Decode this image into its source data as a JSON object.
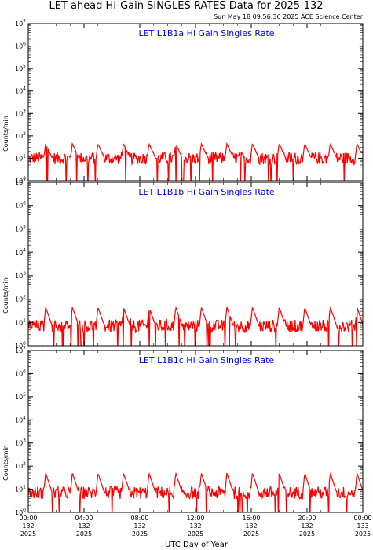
{
  "title": "LET ahead Hi-Gain SINGLES RATES Data for 2025-132",
  "timestamp": "Sun May 18 09:56:36 2025 ACE Science Center",
  "ylabel": "Counts/min",
  "xlabel": "UTC Day of Year",
  "colors": {
    "line": "#ff0000",
    "panel_title": "#0000ff",
    "axis": "#000000"
  },
  "chart_data": [
    {
      "type": "line",
      "title": "LET L1B1a Hi Gain Singles Rate",
      "y_scale": "log",
      "ylim": [
        1,
        10000000
      ],
      "y_ticks": [
        {
          "base": "10",
          "exp": "0"
        },
        {
          "base": "10",
          "exp": "1"
        },
        {
          "base": "10",
          "exp": "2"
        },
        {
          "base": "10",
          "exp": "3"
        },
        {
          "base": "10",
          "exp": "4"
        },
        {
          "base": "10",
          "exp": "5"
        },
        {
          "base": "10",
          "exp": "6"
        },
        {
          "base": "10",
          "exp": "7"
        }
      ],
      "baseline": 10,
      "peak": 45,
      "peak_times": [
        "01:10",
        "03:05",
        "04:55",
        "06:45",
        "08:35",
        "10:30",
        "12:20",
        "14:10",
        "16:00",
        "17:55",
        "19:45",
        "21:35",
        "23:30"
      ],
      "series": [
        {
          "values": []
        }
      ]
    },
    {
      "type": "line",
      "title": "LET L1B1b Hi Gain Singles Rate",
      "y_scale": "log",
      "ylim": [
        1,
        10000000
      ],
      "y_ticks": [
        {
          "base": "10",
          "exp": "0"
        },
        {
          "base": "10",
          "exp": "1"
        },
        {
          "base": "10",
          "exp": "2"
        },
        {
          "base": "10",
          "exp": "3"
        },
        {
          "base": "10",
          "exp": "4"
        },
        {
          "base": "10",
          "exp": "5"
        },
        {
          "base": "10",
          "exp": "6"
        },
        {
          "base": "10",
          "exp": "7"
        }
      ],
      "baseline": 7,
      "peak": 45,
      "peak_times": [
        "01:10",
        "03:05",
        "04:55",
        "06:45",
        "08:35",
        "10:30",
        "12:20",
        "14:10",
        "16:00",
        "17:55",
        "19:45",
        "21:35",
        "23:30"
      ],
      "series": [
        {
          "values": []
        }
      ]
    },
    {
      "type": "line",
      "title": "LET L1B1c Hi Gain Singles Rate",
      "y_scale": "log",
      "ylim": [
        1,
        10000000
      ],
      "y_ticks": [
        {
          "base": "10",
          "exp": "0"
        },
        {
          "base": "10",
          "exp": "1"
        },
        {
          "base": "10",
          "exp": "2"
        },
        {
          "base": "10",
          "exp": "3"
        },
        {
          "base": "10",
          "exp": "4"
        },
        {
          "base": "10",
          "exp": "5"
        },
        {
          "base": "10",
          "exp": "6"
        },
        {
          "base": "10",
          "exp": "7"
        }
      ],
      "baseline": 7,
      "peak": 50,
      "peak_times": [
        "01:10",
        "03:05",
        "04:55",
        "06:45",
        "08:35",
        "10:30",
        "12:20",
        "14:10",
        "16:00",
        "17:55",
        "19:45",
        "21:35",
        "23:30"
      ],
      "series": [
        {
          "values": []
        }
      ]
    }
  ],
  "x_axis": {
    "range_hours": [
      0,
      24
    ],
    "ticks": [
      {
        "hours": 0,
        "time": "00:00",
        "doy": "132",
        "year": "2025"
      },
      {
        "hours": 4,
        "time": "04:00",
        "doy": "132",
        "year": "2025"
      },
      {
        "hours": 8,
        "time": "08:00",
        "doy": "132",
        "year": "2025"
      },
      {
        "hours": 12,
        "time": "12:00",
        "doy": "132",
        "year": "2025"
      },
      {
        "hours": 16,
        "time": "16:00",
        "doy": "132",
        "year": "2025"
      },
      {
        "hours": 20,
        "time": "20:00",
        "doy": "132",
        "year": "2025"
      },
      {
        "hours": 24,
        "time": "00:00",
        "doy": "133",
        "year": "2025"
      }
    ]
  }
}
